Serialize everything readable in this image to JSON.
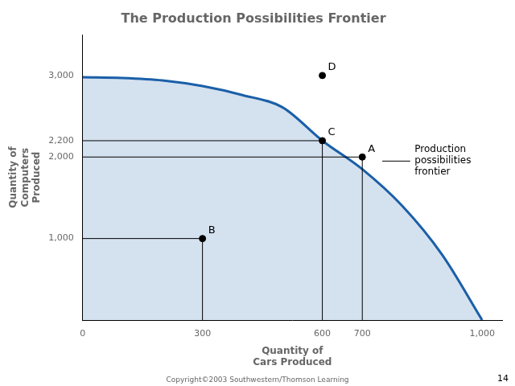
{
  "chart_data": {
    "type": "line",
    "title": "The Production Possibilities Frontier",
    "xlabel": "Quantity of\nCars Produced",
    "ylabel": "Quantity of\nComputers\nProduced",
    "x": [
      0,
      100,
      200,
      300,
      400,
      500,
      600,
      700,
      800,
      900,
      1000
    ],
    "series": [
      {
        "values": [
          2980,
          2970,
          2940,
          2870,
          2760,
          2610,
          2200,
          1850,
          1400,
          800,
          0
        ],
        "color": "#1a5fa8"
      }
    ],
    "points": [
      {
        "label": "A",
        "x": 700,
        "y": 2000
      },
      {
        "label": "B",
        "x": 300,
        "y": 1000
      },
      {
        "label": "C",
        "x": 600,
        "y": 2200
      },
      {
        "label": "D",
        "x": 600,
        "y": 3000
      }
    ],
    "hlines": [
      {
        "y": 2200,
        "xmin": 0,
        "xmax": 600
      },
      {
        "y": 2000,
        "xmin": 0,
        "xmax": 700
      },
      {
        "y": 1000,
        "xmin": 0,
        "xmax": 300
      }
    ],
    "vlines": [
      {
        "x": 600,
        "ymin": 0,
        "ymax": 2200
      },
      {
        "x": 700,
        "ymin": 0,
        "ymax": 2000
      },
      {
        "x": 300,
        "ymin": 0,
        "ymax": 1000
      }
    ],
    "annotation_line": {
      "y": 1950,
      "x0": 750,
      "x1": 820
    },
    "annotation": {
      "text": "Production\npossibilities\nfrontier",
      "x": 825,
      "y": 1950
    },
    "xlim": [
      0,
      1050
    ],
    "ylim": [
      0,
      3500
    ],
    "xticks": [
      0,
      300,
      600,
      700,
      {
        "value": 1000,
        "label": "1,000"
      }
    ],
    "yticks": [
      {
        "value": 1000,
        "label": "1,000"
      },
      {
        "value": 2000,
        "label": "2,000"
      },
      {
        "value": 2200,
        "label": "2,200"
      },
      {
        "value": 3000,
        "label": "3,000"
      }
    ],
    "grid": false,
    "page_number": "14",
    "copyright": "Copyright©2003 Southwestern/Thomson Learning"
  }
}
